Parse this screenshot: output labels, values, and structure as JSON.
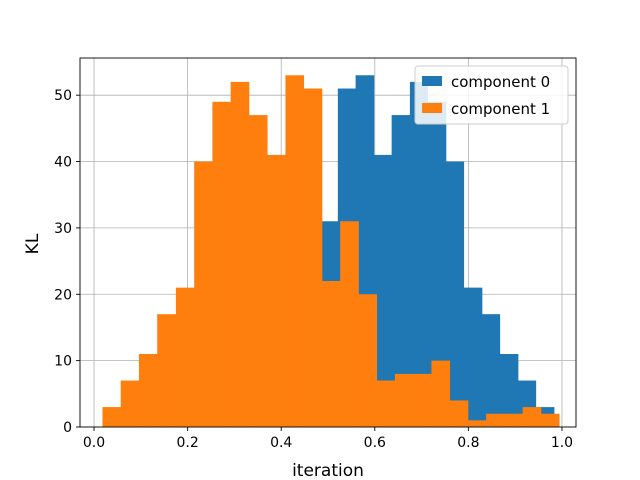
{
  "chart_data": {
    "type": "bar",
    "subtype": "overlapping-histogram",
    "title": "",
    "xlabel": "iteration",
    "ylabel": "KL",
    "xlim": [
      -0.03,
      1.03
    ],
    "ylim": [
      0,
      55.6
    ],
    "xticks": [
      0.0,
      0.2,
      0.4,
      0.6,
      0.8,
      1.0
    ],
    "xtick_labels": [
      "0.0",
      "0.2",
      "0.4",
      "0.6",
      "0.8",
      "1.0"
    ],
    "yticks": [
      0,
      10,
      20,
      30,
      40,
      50
    ],
    "ytick_labels": [
      "0",
      "10",
      "20",
      "30",
      "40",
      "50"
    ],
    "grid": true,
    "legend_position": "top-right",
    "series": [
      {
        "name": "component 0",
        "color": "#1f77b4",
        "bin_edges": [
          0.0,
          0.482,
          0.521,
          0.559,
          0.598,
          0.636,
          0.675,
          0.713,
          0.752,
          0.79,
          0.829,
          0.867,
          0.906,
          0.944,
          0.983
        ],
        "values": [
          null,
          31,
          51,
          53,
          41,
          47,
          52,
          49,
          40,
          21,
          17,
          11,
          7,
          3
        ]
      },
      {
        "name": "component 1",
        "color": "#ff7f0e",
        "bin_edges": [
          0.018,
          0.057,
          0.096,
          0.135,
          0.175,
          0.214,
          0.253,
          0.292,
          0.331,
          0.37,
          0.409,
          0.448,
          0.487,
          0.526,
          0.565,
          0.604,
          0.643,
          0.682,
          0.721,
          0.76,
          0.799,
          0.838,
          0.877,
          0.916,
          0.955,
          0.994
        ],
        "values": [
          3,
          7,
          11,
          17,
          21,
          40,
          49,
          52,
          47,
          41,
          53,
          51,
          22,
          31,
          20,
          7,
          8,
          8,
          10,
          4,
          1,
          2,
          2,
          3,
          2
        ]
      }
    ]
  }
}
